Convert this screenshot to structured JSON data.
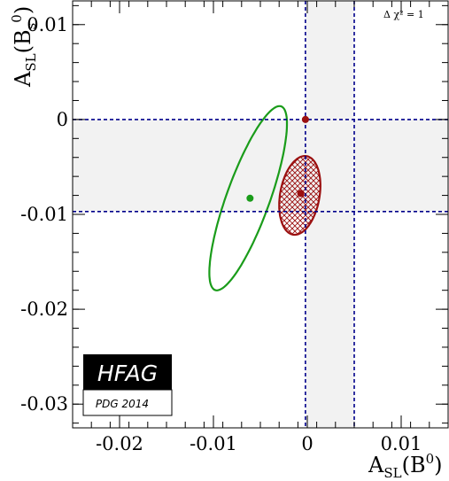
{
  "chart_data": {
    "type": "scatter",
    "xlim": [
      -0.025,
      0.015
    ],
    "ylim": [
      -0.0325,
      0.0125
    ],
    "x_ticks": [
      -0.02,
      -0.01,
      0,
      0.01
    ],
    "x_tick_labels": [
      "-0.02",
      "-0.01",
      "0",
      "0.01"
    ],
    "y_ticks": [
      -0.03,
      -0.02,
      -0.01,
      0,
      0.01
    ],
    "y_tick_labels": [
      "-0.03",
      "-0.02",
      "-0.01",
      "0",
      "0.01"
    ],
    "xlabel": {
      "main": "A",
      "sub": "SL",
      "rest": "(B",
      "sup": "0",
      "close": ")"
    },
    "ylabel": {
      "main": "A",
      "sub": "SL",
      "rest": "(B",
      "subs": "s",
      "sup": "0",
      "close": ")"
    },
    "annotation": "Δ χ² = 1",
    "bands": [
      {
        "orientation": "vertical",
        "from": -0.0002,
        "to": 0.005,
        "color": "#f2f2f2"
      },
      {
        "orientation": "horizontal",
        "from": -0.0097,
        "to": 0.0,
        "color": "#f2f2f2"
      }
    ],
    "lines": [
      {
        "orientation": "vertical",
        "value": -0.0002,
        "color": "#00008b"
      },
      {
        "orientation": "vertical",
        "value": 0.005,
        "color": "#00008b"
      },
      {
        "orientation": "horizontal",
        "value": 0.0,
        "color": "#00008b"
      },
      {
        "orientation": "horizontal",
        "value": -0.0097,
        "color": "#00008b"
      }
    ],
    "points": [
      {
        "x": -0.0061,
        "y": -0.0083,
        "color": "#1a9c1a"
      },
      {
        "x": -0.0007,
        "y": -0.0078,
        "color": "#9b1010"
      },
      {
        "x": -0.0002,
        "y": 0.0,
        "color": "#9b1010"
      }
    ],
    "ellipses": [
      {
        "cx": -0.0063,
        "cy": -0.0083,
        "rx": 0.0103,
        "ry": 0.0023,
        "angle_deg": -70,
        "color": "#1a9c1a",
        "fill": "none"
      },
      {
        "cx": -0.0008,
        "cy": -0.008,
        "rx": 0.0042,
        "ry": 0.0021,
        "angle_deg": -80,
        "color": "#9b1010",
        "fill": "hatch"
      }
    ],
    "logo": {
      "title": "HFAG",
      "subtitle": "PDG 2014"
    }
  }
}
